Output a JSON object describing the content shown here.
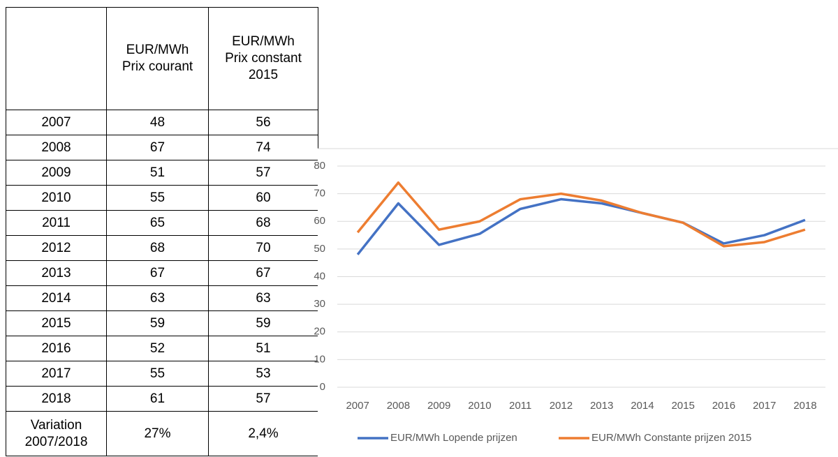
{
  "table": {
    "header": [
      [
        "EUR/MWh",
        "Prix courant"
      ],
      [
        "EUR/MWh",
        "Prix constant",
        "2015"
      ]
    ],
    "rows": [
      [
        "2007",
        48,
        56
      ],
      [
        "2008",
        67,
        74
      ],
      [
        "2009",
        51,
        57
      ],
      [
        "2010",
        55,
        60
      ],
      [
        "2011",
        65,
        68
      ],
      [
        "2012",
        68,
        70
      ],
      [
        "2013",
        67,
        67
      ],
      [
        "2014",
        63,
        63
      ],
      [
        "2015",
        59,
        59
      ],
      [
        "2016",
        52,
        51
      ],
      [
        "2017",
        55,
        53
      ],
      [
        "2018",
        61,
        57
      ]
    ],
    "footer": [
      [
        "Variation",
        "2007/2018"
      ],
      "27%",
      "2,4%"
    ]
  },
  "chart_data": {
    "type": "line",
    "categories": [
      "2007",
      "2008",
      "2009",
      "2010",
      "2011",
      "2012",
      "2013",
      "2014",
      "2015",
      "2016",
      "2017",
      "2018"
    ],
    "series": [
      {
        "name": "EUR/MWh Lopende prijzen",
        "color": "#4472c4",
        "values": [
          48,
          66.5,
          51.5,
          55.5,
          64.5,
          68,
          66.5,
          63,
          59.5,
          52,
          55,
          60.5
        ]
      },
      {
        "name": "EUR/MWh Constante prijzen 2015",
        "color": "#ed7d31",
        "values": [
          56,
          74,
          57,
          60,
          68,
          70,
          67.5,
          63,
          59.5,
          51,
          52.5,
          57
        ]
      }
    ],
    "ylim": [
      0,
      80
    ],
    "yticks": [
      0,
      10,
      20,
      30,
      40,
      50,
      60,
      70,
      80
    ],
    "grid": true,
    "legend": "bottom"
  }
}
